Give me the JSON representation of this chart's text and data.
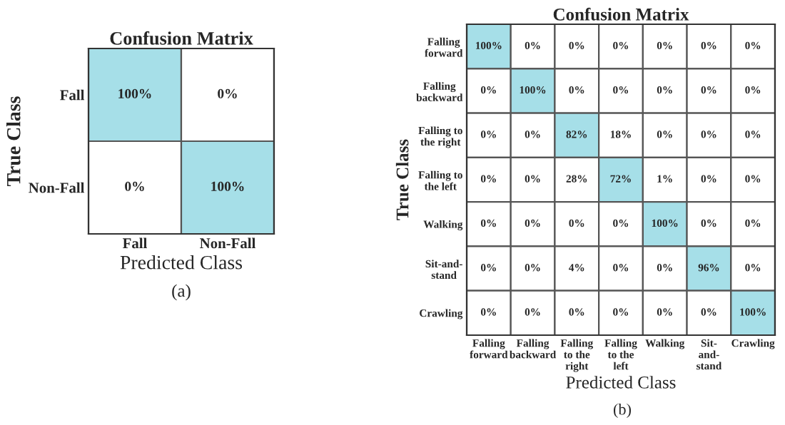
{
  "chart_data": [
    {
      "type": "heatmap",
      "title": "Confusion Matrix",
      "xlabel": "Predicted Class",
      "ylabel": "True Class",
      "annotations": [
        "(a)"
      ],
      "categories": [
        "Fall",
        "Non-Fall"
      ],
      "y_categories": [
        "Fall",
        "Non-Fall"
      ],
      "cells": [
        [
          100,
          0
        ],
        [
          0,
          100
        ]
      ],
      "cell_labels": [
        [
          "100%",
          "0%"
        ],
        [
          "0%",
          "100%"
        ]
      ],
      "colors": [
        "#ffffff",
        "#a6dfe8"
      ]
    },
    {
      "type": "heatmap",
      "title": "Confusion Matrix",
      "xlabel": "Predicted Class",
      "ylabel": "True Class",
      "annotations": [
        "(b)"
      ],
      "categories": [
        "Falling\nforward",
        "Falling\nbackward",
        "Falling\nto the\nright",
        "Falling\nto the\nleft",
        "Walking",
        "Sit-\nand-\nstand",
        "Crawling"
      ],
      "y_categories": [
        "Falling\nforward",
        "Falling\nbackward",
        "Falling to\nthe right",
        "Falling to\nthe left",
        "Walking",
        "Sit-and-\nstand",
        "Crawling"
      ],
      "cells": [
        [
          100,
          0,
          0,
          0,
          0,
          0,
          0
        ],
        [
          0,
          100,
          0,
          0,
          0,
          0,
          0
        ],
        [
          0,
          0,
          82,
          18,
          0,
          0,
          0
        ],
        [
          0,
          0,
          28,
          72,
          1,
          0,
          0
        ],
        [
          0,
          0,
          0,
          0,
          100,
          0,
          0
        ],
        [
          0,
          0,
          4,
          0,
          0,
          96,
          0
        ],
        [
          0,
          0,
          0,
          0,
          0,
          0,
          100
        ]
      ],
      "cell_labels": [
        [
          "100%",
          "0%",
          "0%",
          "0%",
          "0%",
          "0%",
          "0%"
        ],
        [
          "0%",
          "100%",
          "0%",
          "0%",
          "0%",
          "0%",
          "0%"
        ],
        [
          "0%",
          "0%",
          "82%",
          "18%",
          "0%",
          "0%",
          "0%"
        ],
        [
          "0%",
          "0%",
          "28%",
          "72%",
          "1%",
          "0%",
          "0%"
        ],
        [
          "0%",
          "0%",
          "0%",
          "0%",
          "100%",
          "0%",
          "0%"
        ],
        [
          "0%",
          "0%",
          "4%",
          "0%",
          "0%",
          "96%",
          "0%"
        ],
        [
          "0%",
          "0%",
          "0%",
          "0%",
          "0%",
          "0%",
          "100%"
        ]
      ],
      "colors": [
        "#ffffff",
        "#a6dfe8"
      ]
    }
  ]
}
